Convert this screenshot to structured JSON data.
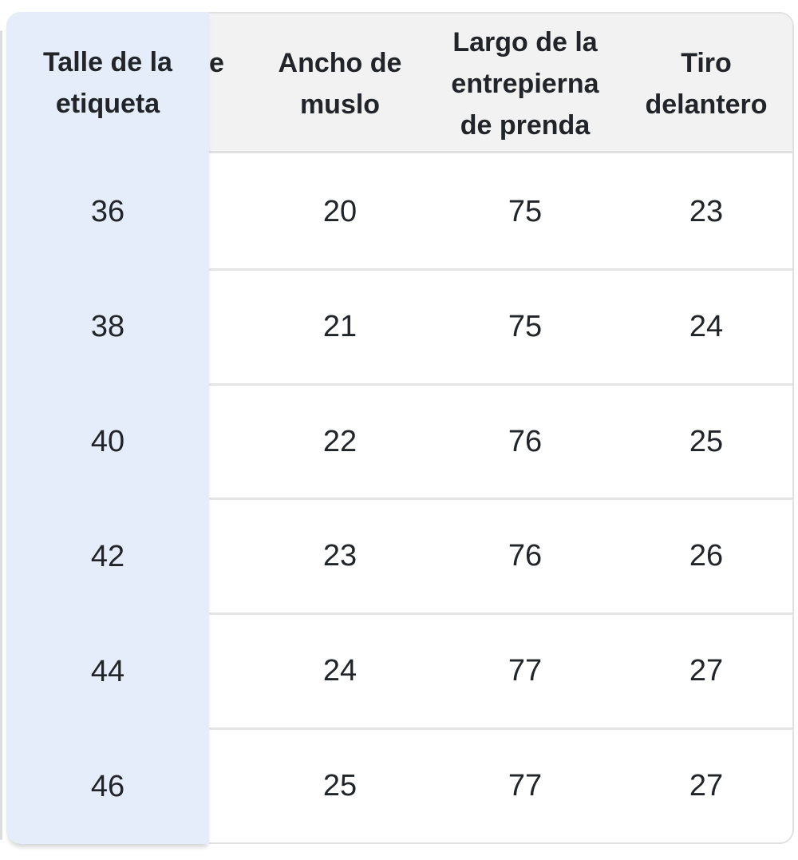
{
  "colors": {
    "sticky_column_bg": "#e4edf9",
    "header_bg": "#f2f2f2",
    "border": "#e0e0e0",
    "text": "#212428"
  },
  "size_table": {
    "sticky_column_header": "Talle de la etiqueta",
    "clipped_column_header_fragment": "e",
    "column_headers": [
      "Ancho de muslo",
      "Largo de la entrepierna de prenda",
      "Tiro delantero"
    ],
    "rows": [
      {
        "label_size": "36",
        "values": [
          "20",
          "75",
          "23"
        ]
      },
      {
        "label_size": "38",
        "values": [
          "21",
          "75",
          "24"
        ]
      },
      {
        "label_size": "40",
        "values": [
          "22",
          "76",
          "25"
        ]
      },
      {
        "label_size": "42",
        "values": [
          "23",
          "76",
          "26"
        ]
      },
      {
        "label_size": "44",
        "values": [
          "24",
          "77",
          "27"
        ]
      },
      {
        "label_size": "46",
        "values": [
          "25",
          "77",
          "27"
        ]
      }
    ]
  }
}
